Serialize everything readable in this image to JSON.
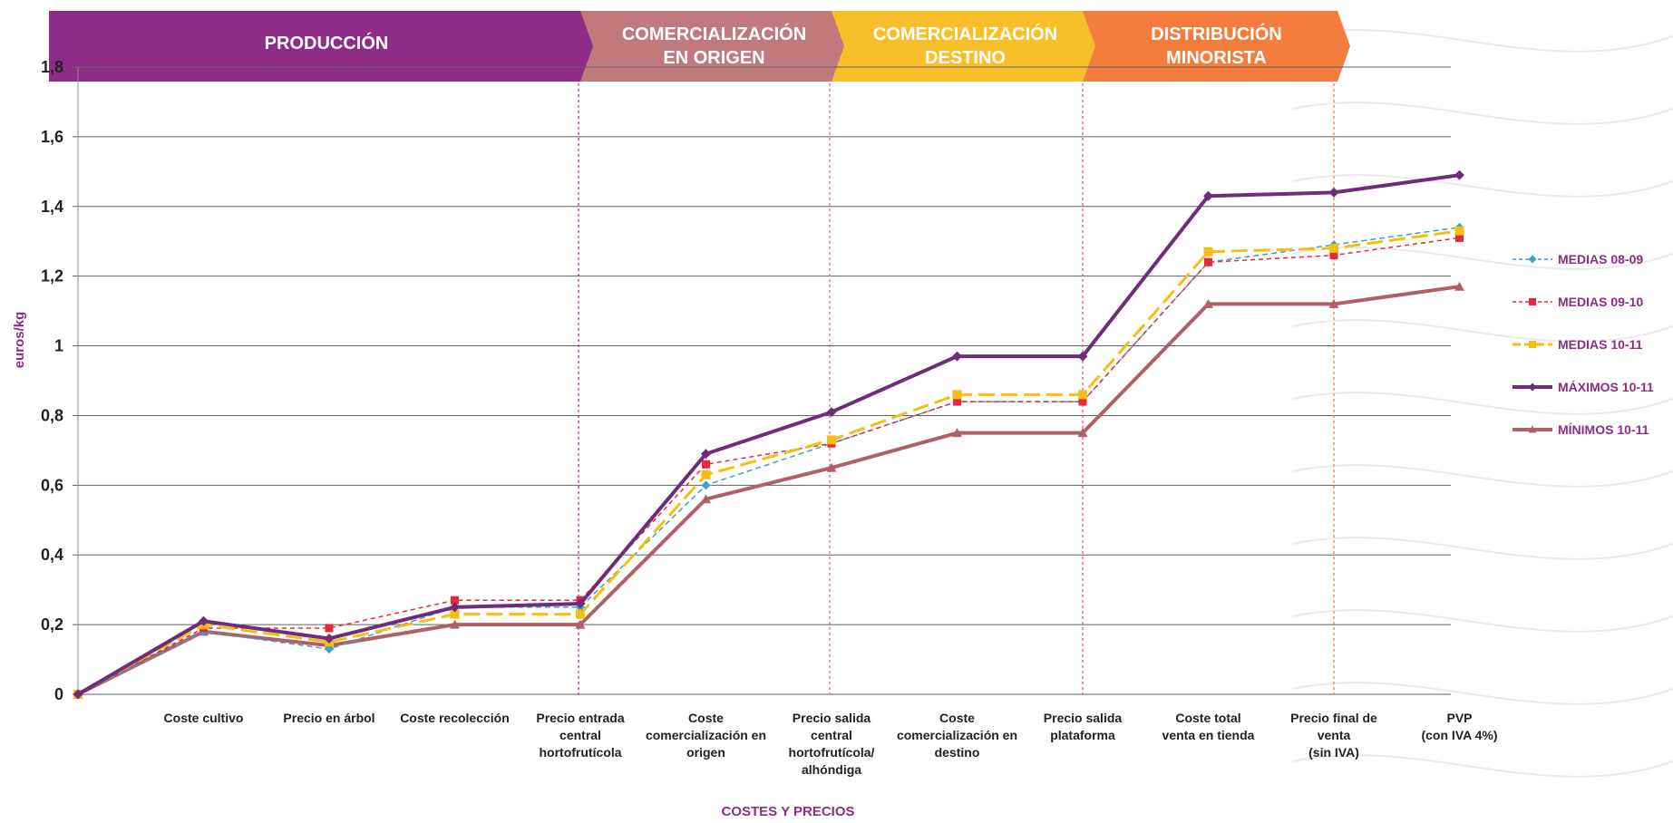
{
  "chart_data": {
    "type": "line",
    "ylabel": "euros/kg",
    "xlabel": "COSTES Y PRECIOS",
    "ylim": [
      0,
      1.8
    ],
    "yticks": [
      0,
      0.2,
      0.4,
      0.6,
      0.8,
      1,
      1.2,
      1.4,
      1.6,
      1.8
    ],
    "ytick_labels": [
      "0",
      "0,2",
      "0,4",
      "0,6",
      "0,8",
      "1",
      "1,2",
      "1,4",
      "1,6",
      "1,8"
    ],
    "grid": true,
    "legend_position": "right",
    "categories": [
      "",
      "Coste cultivo",
      "Precio en árbol",
      "Coste recolección",
      "Precio entrada central hortofrutícola",
      "Coste comercialización en origen",
      "Precio salida central hortofrutícola/ alhóndiga",
      "Coste comercialización en destino",
      "Precio salida plataforma",
      "Coste total venta en tienda",
      "Precio final de venta (sin IVA)",
      "PVP (con IVA 4%)"
    ],
    "category_lines": [
      [
        ""
      ],
      [
        "Coste cultivo"
      ],
      [
        "Precio en árbol"
      ],
      [
        "Coste recolección"
      ],
      [
        "Precio entrada",
        "central",
        "hortofrutícola"
      ],
      [
        "Coste",
        "comercialización en",
        "origen"
      ],
      [
        "Precio salida",
        "central",
        "hortofrutícola/",
        "alhóndiga"
      ],
      [
        "Coste",
        "comercialización en",
        "destino"
      ],
      [
        "Precio salida",
        "plataforma"
      ],
      [
        "Coste total",
        "venta en tienda"
      ],
      [
        "Precio final de",
        "venta",
        "(sin IVA)"
      ],
      [
        "PVP",
        "(con IVA 4%)"
      ]
    ],
    "series": [
      {
        "name": "MEDIAS 08-09",
        "color": "#3a9fd1",
        "dash": "6,4",
        "width": 1.5,
        "marker": "diamond",
        "values": [
          0,
          0.18,
          0.13,
          0.25,
          0.25,
          0.6,
          0.72,
          0.84,
          0.84,
          1.24,
          1.29,
          1.34
        ]
      },
      {
        "name": "MEDIAS  09-10",
        "color": "#e8283a",
        "dash": "5,4",
        "width": 1.5,
        "marker": "square",
        "values": [
          0,
          0.19,
          0.19,
          0.27,
          0.27,
          0.66,
          0.72,
          0.84,
          0.84,
          1.24,
          1.26,
          1.31
        ]
      },
      {
        "name": "MEDIAS 10-11",
        "color": "#f7be12",
        "dash": "18,7",
        "width": 3,
        "marker": "square",
        "values": [
          0,
          0.2,
          0.15,
          0.23,
          0.23,
          0.63,
          0.73,
          0.86,
          0.86,
          1.27,
          1.28,
          1.33
        ]
      },
      {
        "name": "MÁXIMOS 10-11",
        "color": "#6e2c7a",
        "dash": "",
        "width": 4,
        "marker": "diamond",
        "values": [
          0,
          0.21,
          0.16,
          0.25,
          0.26,
          0.69,
          0.81,
          0.97,
          0.97,
          1.43,
          1.44,
          1.49
        ]
      },
      {
        "name": "MÍNIMOS 10-11",
        "color": "#b05f66",
        "dash": "",
        "width": 4,
        "marker": "triangle",
        "values": [
          0,
          0.18,
          0.14,
          0.2,
          0.2,
          0.56,
          0.65,
          0.75,
          0.75,
          1.12,
          1.12,
          1.17
        ]
      }
    ],
    "stages": [
      {
        "lines": [
          "PRODUCCIÓN"
        ],
        "color": "#8e2c87",
        "divider_color": "#c9339b"
      },
      {
        "lines": [
          "COMERCIALIZACIÓN",
          "EN ORIGEN"
        ],
        "color": "#c07a7b",
        "divider_color": "#d46d9a"
      },
      {
        "lines": [
          "COMERCIALIZACIÓN",
          "DESTINO"
        ],
        "color": "#f8bf2a",
        "divider_color": "#e85a73"
      },
      {
        "lines": [
          "DISTRIBUCIÓN",
          "MINORISTA"
        ],
        "color": "#f47c3c",
        "divider_color": "#f47c3c"
      }
    ]
  }
}
